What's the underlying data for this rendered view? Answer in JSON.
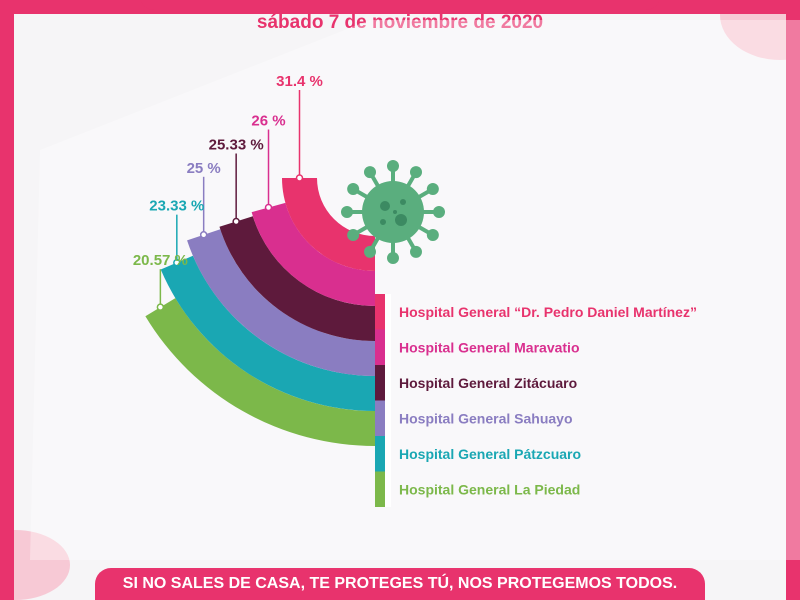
{
  "date": "sábado 7 de noviembre de 2020",
  "footer": "SI NO SALES DE CASA, TE PROTEGES TÚ, NOS PROTEGEMOS TODOS.",
  "icon": "virus-icon",
  "chart_data": {
    "type": "bar",
    "categories": [
      "Hospital General “Dr. Pedro Daniel Martínez”",
      "Hospital General Maravatio",
      "Hospital General Zitácuaro",
      "Hospital General Sahuayo",
      "Hospital General Pátzcuaro",
      "Hospital General La Piedad"
    ],
    "values": [
      31.4,
      26,
      25.33,
      25,
      23.33,
      20.57
    ],
    "value_labels": [
      "31.4 %",
      "26 %",
      "25.33 %",
      "25 %",
      "23.33 %",
      "20.57 %"
    ],
    "colors": [
      "#e8336d",
      "#d92f8f",
      "#5e1a3c",
      "#8a7dc1",
      "#1aa7b3",
      "#7cb84a"
    ],
    "label_colors": [
      "#e8336d",
      "#d92f8f",
      "#5e1a3c",
      "#8a7dc1",
      "#1aa7b3",
      "#7cb84a"
    ]
  }
}
